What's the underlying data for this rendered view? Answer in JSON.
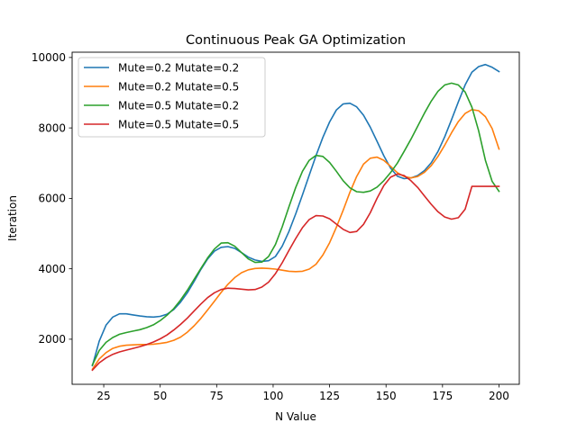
{
  "chart_data": {
    "type": "line",
    "title": "Continuous Peak GA Optimization",
    "xlabel": "N Value",
    "ylabel": "Iteration",
    "xlim": [
      11,
      209
    ],
    "ylim": [
      720,
      10150
    ],
    "xticks": [
      25,
      50,
      75,
      100,
      125,
      150,
      175,
      200
    ],
    "yticks": [
      2000,
      4000,
      6000,
      8000,
      10000
    ],
    "grid": false,
    "legend": "top-left",
    "x": [
      20,
      23,
      26,
      29,
      32,
      35,
      38,
      41,
      44,
      47,
      50,
      53,
      56,
      59,
      62,
      65,
      68,
      71,
      74,
      77,
      80,
      83,
      86,
      89,
      92,
      95,
      98,
      101,
      104,
      107,
      110,
      113,
      116,
      119,
      122,
      125,
      128,
      131,
      134,
      137,
      140,
      143,
      146,
      149,
      152,
      155,
      158,
      161,
      164,
      167,
      170,
      173,
      176,
      179,
      182,
      185,
      188,
      191,
      194,
      197,
      200
    ],
    "series": [
      {
        "name": "Mute=0.2 Mutate=0.2",
        "color": "#1f77b4",
        "values": [
          1250,
          1950,
          2400,
          2630,
          2720,
          2720,
          2690,
          2660,
          2640,
          2630,
          2650,
          2710,
          2840,
          3050,
          3320,
          3640,
          3980,
          4280,
          4500,
          4610,
          4630,
          4580,
          4460,
          4330,
          4250,
          4210,
          4230,
          4350,
          4640,
          5060,
          5560,
          6100,
          6660,
          7210,
          7730,
          8170,
          8510,
          8680,
          8700,
          8600,
          8360,
          8020,
          7620,
          7210,
          6860,
          6630,
          6560,
          6580,
          6650,
          6790,
          7010,
          7330,
          7750,
          8230,
          8740,
          9220,
          9580,
          9740,
          9800,
          9720,
          9600
        ]
      },
      {
        "name": "Mute=0.2 Mutate=0.5",
        "color": "#ff7f0e",
        "values": [
          1150,
          1440,
          1620,
          1740,
          1800,
          1830,
          1840,
          1850,
          1850,
          1860,
          1880,
          1910,
          1970,
          2060,
          2200,
          2380,
          2590,
          2830,
          3080,
          3330,
          3560,
          3750,
          3890,
          3970,
          4010,
          4020,
          4010,
          3990,
          3960,
          3930,
          3920,
          3930,
          3990,
          4130,
          4390,
          4740,
          5180,
          5660,
          6170,
          6620,
          6970,
          7140,
          7170,
          7080,
          6910,
          6730,
          6620,
          6580,
          6620,
          6740,
          6930,
          7190,
          7510,
          7860,
          8180,
          8410,
          8520,
          8490,
          8320,
          7980,
          7400
        ]
      },
      {
        "name": "Mute=0.5 Mutate=0.2",
        "color": "#2ca02c",
        "values": [
          1270,
          1680,
          1910,
          2050,
          2140,
          2190,
          2230,
          2270,
          2330,
          2410,
          2530,
          2680,
          2870,
          3110,
          3390,
          3700,
          4010,
          4310,
          4560,
          4730,
          4740,
          4640,
          4460,
          4280,
          4180,
          4190,
          4350,
          4690,
          5190,
          5760,
          6310,
          6770,
          7080,
          7220,
          7190,
          7020,
          6770,
          6500,
          6300,
          6190,
          6170,
          6210,
          6320,
          6500,
          6730,
          7000,
          7330,
          7680,
          8050,
          8420,
          8760,
          9040,
          9220,
          9270,
          9220,
          9020,
          8590,
          7920,
          7080,
          6480,
          6200
        ]
      },
      {
        "name": "Mute=0.5 Mutate=0.5",
        "color": "#d62728",
        "values": [
          1120,
          1330,
          1470,
          1570,
          1640,
          1690,
          1740,
          1790,
          1850,
          1920,
          2010,
          2120,
          2260,
          2420,
          2600,
          2800,
          3000,
          3180,
          3320,
          3410,
          3450,
          3440,
          3420,
          3400,
          3410,
          3480,
          3620,
          3860,
          4170,
          4520,
          4860,
          5170,
          5400,
          5510,
          5500,
          5420,
          5270,
          5120,
          5030,
          5060,
          5260,
          5590,
          6000,
          6360,
          6600,
          6690,
          6650,
          6500,
          6310,
          6070,
          5830,
          5620,
          5470,
          5410,
          5450,
          5690,
          6340,
          6340,
          6340,
          6340,
          6340
        ]
      }
    ]
  }
}
